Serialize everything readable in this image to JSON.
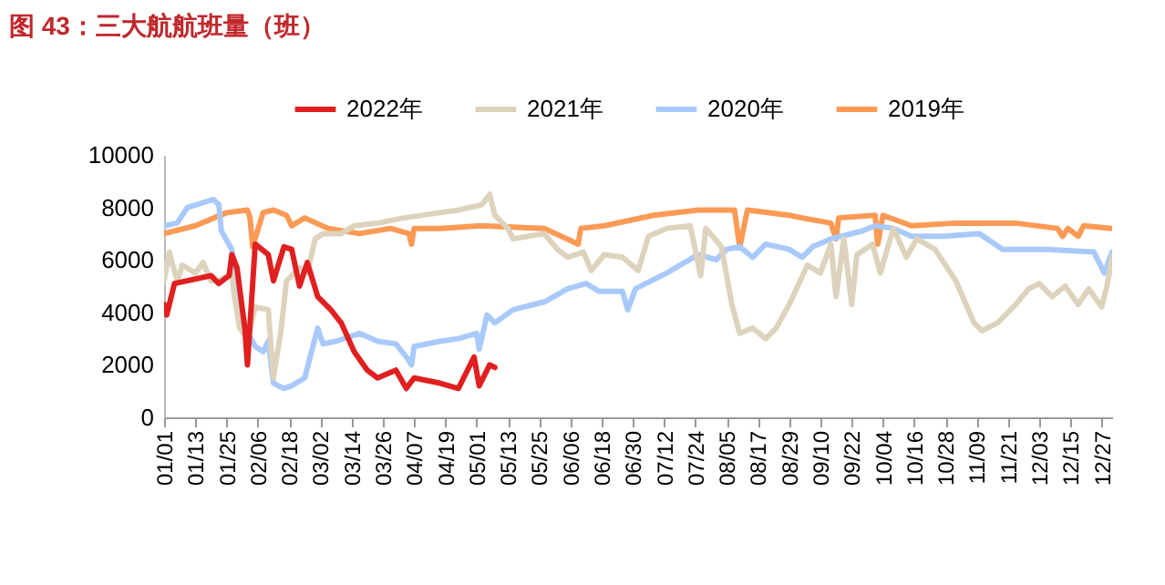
{
  "chart_data": {
    "type": "line",
    "title": "图 43：三大航航班量（班）",
    "ylim": [
      0,
      10000
    ],
    "yticks": [
      0,
      2000,
      4000,
      6000,
      8000,
      10000
    ],
    "xlim": [
      "--01-01",
      "--12-31"
    ],
    "xticks": [
      {
        "value": "--01-01",
        "label": "01/01"
      },
      {
        "value": "--01-13",
        "label": "01/13"
      },
      {
        "value": "--01-25",
        "label": "01/25"
      },
      {
        "value": "--02-06",
        "label": "02/06"
      },
      {
        "value": "--02-18",
        "label": "02/18"
      },
      {
        "value": "--03-02",
        "label": "03/02"
      },
      {
        "value": "--03-14",
        "label": "03/14"
      },
      {
        "value": "--03-26",
        "label": "03/26"
      },
      {
        "value": "--04-07",
        "label": "04/07"
      },
      {
        "value": "--04-19",
        "label": "04/19"
      },
      {
        "value": "--05-01",
        "label": "05/01"
      },
      {
        "value": "--05-13",
        "label": "05/13"
      },
      {
        "value": "--05-25",
        "label": "05/25"
      },
      {
        "value": "--06-06",
        "label": "06/06"
      },
      {
        "value": "--06-18",
        "label": "06/18"
      },
      {
        "value": "--06-30",
        "label": "06/30"
      },
      {
        "value": "--07-12",
        "label": "07/12"
      },
      {
        "value": "--07-24",
        "label": "07/24"
      },
      {
        "value": "--08-05",
        "label": "08/05"
      },
      {
        "value": "--08-17",
        "label": "08/17"
      },
      {
        "value": "--08-29",
        "label": "08/29"
      },
      {
        "value": "--09-10",
        "label": "09/10"
      },
      {
        "value": "--09-22",
        "label": "09/22"
      },
      {
        "value": "--10-04",
        "label": "10/04"
      },
      {
        "value": "--10-16",
        "label": "10/16"
      },
      {
        "value": "--10-28",
        "label": "10/28"
      },
      {
        "value": "--11-09",
        "label": "11/09"
      },
      {
        "value": "--11-21",
        "label": "11/21"
      },
      {
        "value": "--12-03",
        "label": "12/03"
      },
      {
        "value": "--12-15",
        "label": "12/15"
      },
      {
        "value": "--12-27",
        "label": "12/27"
      }
    ],
    "grid": false,
    "legend": "top",
    "marker": "none",
    "line_style": "solid",
    "series": [
      {
        "name": "2022年",
        "color": "#e02020",
        "x": [
          "--01-01",
          "--01-02",
          "--01-05",
          "--01-19",
          "--01-22",
          "--01-26",
          "--01-27",
          "--01-29",
          "--02-01",
          "--02-02",
          "--02-05",
          "--02-10",
          "--02-12",
          "--02-16",
          "--02-19",
          "--02-22",
          "--02-25",
          "--03-01",
          "--03-06",
          "--03-10",
          "--03-15",
          "--03-20",
          "--03-24",
          "--03-31",
          "--04-04",
          "--04-07",
          "--04-17",
          "--04-24",
          "--04-30",
          "--05-02",
          "--05-06",
          "--05-08"
        ],
        "values": [
          4300,
          3900,
          5100,
          5400,
          5100,
          5400,
          6200,
          5700,
          3400,
          2000,
          6600,
          6200,
          5200,
          6500,
          6400,
          5000,
          5900,
          4600,
          4100,
          3600,
          2500,
          1800,
          1500,
          1800,
          1100,
          1500,
          1300,
          1100,
          2300,
          1200,
          2000,
          1900
        ]
      },
      {
        "name": "2021年",
        "color": "#ddd3bd",
        "x": [
          "--01-01",
          "--01-03",
          "--01-06",
          "--01-08",
          "--01-13",
          "--01-16",
          "--01-19",
          "--01-22",
          "--01-27",
          "--01-28",
          "--01-30",
          "--02-02",
          "--02-05",
          "--02-10",
          "--02-12",
          "--02-15",
          "--02-17",
          "--02-22",
          "--02-25",
          "--02-28",
          "--03-03",
          "--03-10",
          "--03-15",
          "--03-24",
          "--04-03",
          "--04-17",
          "--04-24",
          "--05-03",
          "--05-06",
          "--05-08",
          "--05-13",
          "--05-15",
          "--05-27",
          "--06-01",
          "--06-05",
          "--06-11",
          "--06-14",
          "--06-19",
          "--06-26",
          "--07-02",
          "--07-06",
          "--07-13",
          "--07-22",
          "--07-26",
          "--07-28",
          "--08-03",
          "--08-07",
          "--08-10",
          "--08-15",
          "--08-20",
          "--08-24",
          "--08-29",
          "--09-05",
          "--09-10",
          "--09-14",
          "--09-16",
          "--09-19",
          "--09-22",
          "--09-24",
          "--09-30",
          "--10-03",
          "--10-08",
          "--10-13",
          "--10-17",
          "--10-24",
          "--11-01",
          "--11-08",
          "--11-11",
          "--11-17",
          "--11-24",
          "--11-29",
          "--12-03",
          "--12-08",
          "--12-13",
          "--12-18",
          "--12-22",
          "--12-27",
          "--12-29",
          "--12-31"
        ],
        "values": [
          5200,
          6300,
          5200,
          5800,
          5500,
          5900,
          5200,
          5200,
          5500,
          4600,
          3400,
          3000,
          4200,
          4100,
          1500,
          3400,
          5200,
          5700,
          5500,
          6800,
          7000,
          7000,
          7300,
          7400,
          7600,
          7800,
          7900,
          8100,
          8500,
          7700,
          7200,
          6800,
          7000,
          6400,
          6100,
          6300,
          5600,
          6200,
          6100,
          5600,
          6900,
          7200,
          7300,
          5400,
          7200,
          6500,
          4300,
          3200,
          3400,
          3000,
          3400,
          4300,
          5800,
          5500,
          6600,
          4600,
          6800,
          4300,
          6200,
          6600,
          5500,
          7200,
          6100,
          6800,
          6400,
          5200,
          3600,
          3300,
          3600,
          4300,
          4900,
          5100,
          4600,
          5000,
          4300,
          4900,
          4200,
          5000,
          6100
        ]
      },
      {
        "name": "2020年",
        "color": "#a9c9fa",
        "x": [
          "--01-01",
          "--01-06",
          "--01-10",
          "--01-20",
          "--01-22",
          "--01-23",
          "--01-27",
          "--01-29",
          "--02-01",
          "--02-05",
          "--02-08",
          "--02-10",
          "--02-12",
          "--02-16",
          "--02-19",
          "--02-24",
          "--03-01",
          "--03-03",
          "--03-08",
          "--03-17",
          "--03-24",
          "--03-31",
          "--04-04",
          "--04-06",
          "--04-07",
          "--04-17",
          "--04-24",
          "--05-01",
          "--05-02",
          "--05-05",
          "--05-08",
          "--05-15",
          "--05-27",
          "--06-05",
          "--06-12",
          "--06-17",
          "--06-26",
          "--06-28",
          "--07-01",
          "--07-13",
          "--07-25",
          "--08-01",
          "--08-05",
          "--08-10",
          "--08-15",
          "--08-20",
          "--08-29",
          "--09-03",
          "--09-07",
          "--09-14",
          "--09-26",
          "--10-01",
          "--10-08",
          "--10-15",
          "--10-27",
          "--11-10",
          "--11-19",
          "--12-06",
          "--12-24",
          "--12-28",
          "--12-31"
        ],
        "values": [
          7300,
          7400,
          8000,
          8300,
          8100,
          7100,
          6400,
          5200,
          3400,
          2700,
          2500,
          2900,
          1300,
          1100,
          1200,
          1500,
          3400,
          2800,
          2900,
          3200,
          2900,
          2800,
          2300,
          2000,
          2700,
          2900,
          3000,
          3200,
          2600,
          3900,
          3600,
          4100,
          4400,
          4900,
          5100,
          4800,
          4800,
          4100,
          4900,
          5500,
          6200,
          6000,
          6400,
          6500,
          6100,
          6600,
          6400,
          6100,
          6500,
          6800,
          7100,
          7300,
          7200,
          6900,
          6900,
          7000,
          6400,
          6400,
          6300,
          5500,
          6300
        ]
      },
      {
        "name": "2019年",
        "color": "#fb9a55",
        "x": [
          "--01-01",
          "--01-13",
          "--01-25",
          "--02-02",
          "--02-03",
          "--02-04",
          "--02-08",
          "--02-12",
          "--02-17",
          "--02-19",
          "--02-24",
          "--03-05",
          "--03-17",
          "--03-29",
          "--04-05",
          "--04-06",
          "--04-07",
          "--04-17",
          "--05-03",
          "--05-27",
          "--06-09",
          "--06-10",
          "--06-19",
          "--07-08",
          "--07-25",
          "--08-08",
          "--08-10",
          "--08-13",
          "--08-29",
          "--09-03",
          "--09-14",
          "--09-16",
          "--09-17",
          "--10-01",
          "--10-02",
          "--10-04",
          "--10-15",
          "--11-01",
          "--11-24",
          "--12-10",
          "--12-12",
          "--12-14",
          "--12-18",
          "--12-20",
          "--12-31"
        ],
        "values": [
          7000,
          7300,
          7800,
          7900,
          7600,
          6500,
          7800,
          7900,
          7700,
          7300,
          7600,
          7200,
          7000,
          7200,
          7000,
          6600,
          7200,
          7200,
          7300,
          7200,
          6600,
          7200,
          7300,
          7700,
          7900,
          7900,
          6500,
          7900,
          7700,
          7600,
          7400,
          6800,
          7600,
          7700,
          6600,
          7700,
          7300,
          7400,
          7400,
          7200,
          6900,
          7200,
          6900,
          7300,
          7200
        ]
      }
    ]
  }
}
